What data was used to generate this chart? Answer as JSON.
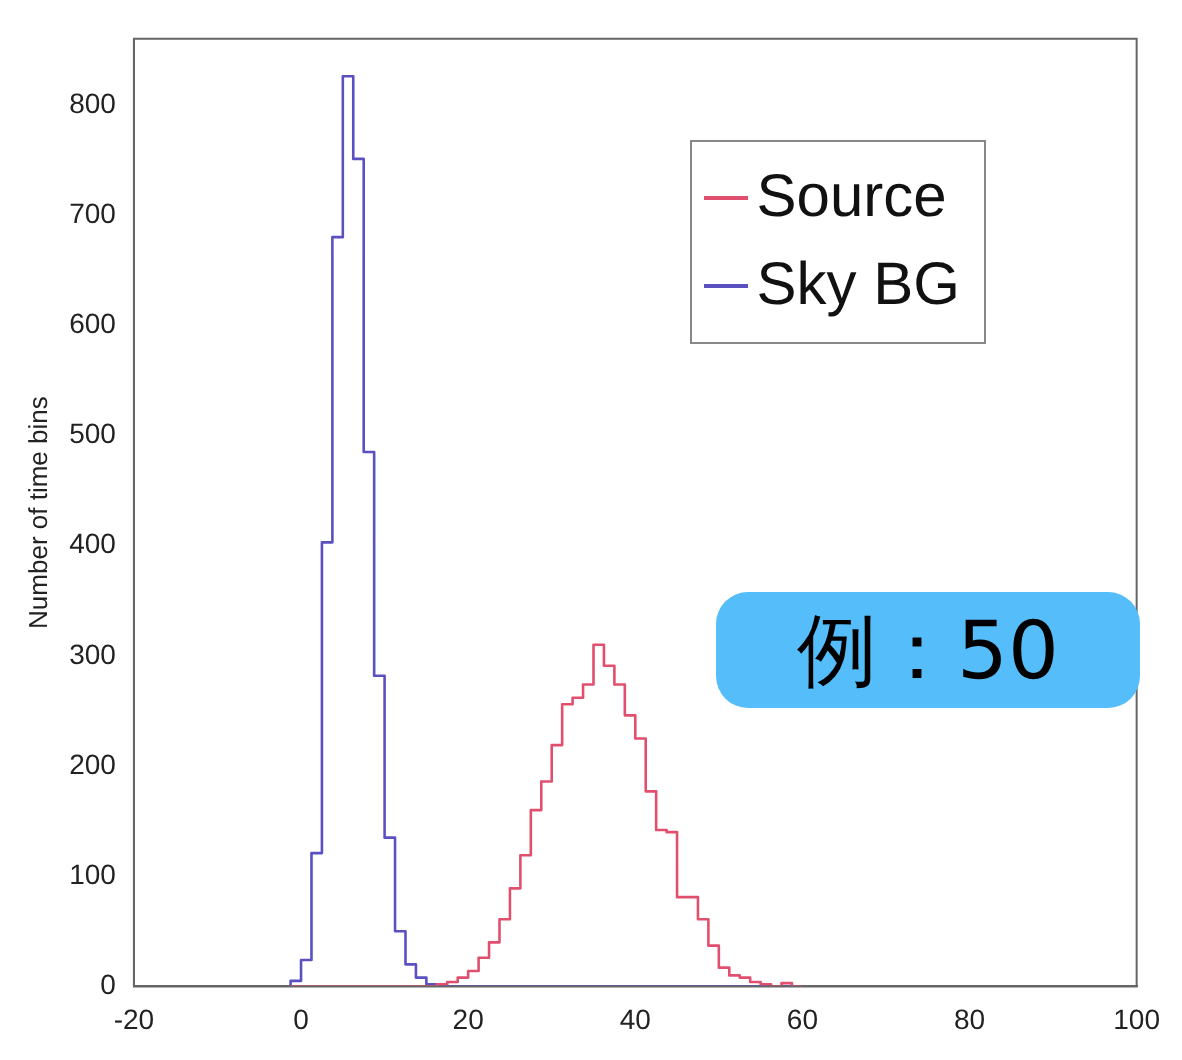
{
  "chart_data": {
    "type": "histogram",
    "ylabel": "Number of time bins",
    "bins": [
      -1.25,
      0,
      1.25,
      2.5,
      3.75,
      5,
      6.25,
      7.5,
      8.75,
      10,
      11.25,
      12.5,
      13.75,
      15,
      16.25,
      17.5,
      18.75,
      20,
      21.25,
      22.5,
      23.75,
      25,
      26.25,
      27.5,
      28.75,
      30,
      31.25,
      32.5,
      33.75,
      35,
      36.25,
      37.5,
      38.75,
      40,
      41.25,
      42.5,
      43.75,
      45,
      46.25,
      47.5,
      48.75,
      50,
      51.25,
      52.5,
      53.75,
      55,
      56.25,
      57.5,
      58.75,
      60
    ],
    "series": [
      {
        "name": "Source",
        "color": "#e0506e",
        "values": [
          0,
          0,
          0,
          0,
          0,
          0,
          0,
          0,
          0,
          0,
          0,
          0,
          0,
          0,
          2,
          4,
          8,
          14,
          26,
          40,
          61,
          89,
          119,
          160,
          186,
          219,
          256,
          262,
          274,
          310,
          291,
          274,
          246,
          225,
          177,
          142,
          140,
          81,
          81,
          61,
          37,
          17,
          10,
          8,
          4,
          2,
          0,
          3,
          0
        ]
      },
      {
        "name": "Sky BG",
        "color": "#5a50c0",
        "values": [
          5,
          24,
          121,
          403,
          680,
          826,
          751,
          485,
          282,
          135,
          50,
          20,
          8,
          2,
          0,
          0,
          0,
          0,
          0,
          0,
          0,
          0,
          0,
          0,
          0,
          0,
          0,
          0,
          0,
          0,
          0,
          0,
          0,
          0,
          0,
          0,
          0,
          0,
          0,
          0,
          0,
          0,
          0,
          0,
          0,
          0,
          0,
          0,
          0
        ]
      }
    ],
    "xlim": [
      -20,
      100
    ],
    "xticks": [
      -20,
      0,
      20,
      40,
      60,
      80,
      100
    ],
    "ylim": [
      0,
      860
    ],
    "yticks": [
      0,
      100,
      200,
      300,
      400,
      500,
      600,
      700,
      800
    ],
    "grid": false,
    "legend": "top right",
    "annotations": [
      "例：50"
    ]
  }
}
